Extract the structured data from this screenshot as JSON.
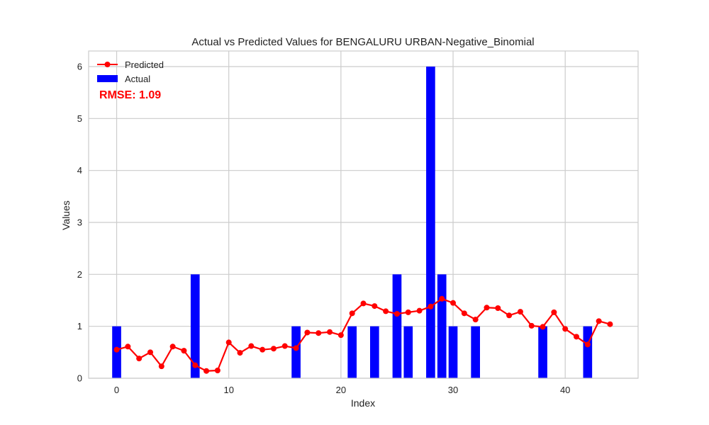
{
  "chart_data": {
    "type": "bar+line",
    "title": "Actual vs Predicted Values for BENGALURU URBAN-Negative_Binomial",
    "xlabel": "Index",
    "ylabel": "Values",
    "xlim": [
      -2.5,
      46.5
    ],
    "ylim": [
      0,
      6.3
    ],
    "xticks": [
      0,
      10,
      20,
      30,
      40
    ],
    "yticks": [
      0,
      1,
      2,
      3,
      4,
      5,
      6
    ],
    "grid": true,
    "legend_position": "top-left",
    "series": [
      {
        "name": "Predicted",
        "kind": "line",
        "color": "#ff0000",
        "x": [
          0,
          1,
          2,
          3,
          4,
          5,
          6,
          7,
          8,
          9,
          10,
          11,
          12,
          13,
          14,
          15,
          16,
          17,
          18,
          19,
          20,
          21,
          22,
          23,
          24,
          25,
          26,
          27,
          28,
          29,
          30,
          31,
          32,
          33,
          34,
          35,
          36,
          37,
          38,
          39,
          40,
          41,
          42,
          43,
          44
        ],
        "values": [
          0.55,
          0.61,
          0.38,
          0.5,
          0.23,
          0.61,
          0.53,
          0.25,
          0.14,
          0.15,
          0.69,
          0.49,
          0.62,
          0.55,
          0.57,
          0.62,
          0.58,
          0.88,
          0.87,
          0.89,
          0.83,
          1.25,
          1.44,
          1.39,
          1.29,
          1.24,
          1.27,
          1.3,
          1.38,
          1.53,
          1.45,
          1.25,
          1.13,
          1.36,
          1.35,
          1.21,
          1.28,
          1.01,
          0.99,
          1.27,
          0.95,
          0.8,
          0.65,
          1.1,
          1.04
        ]
      },
      {
        "name": "Actual",
        "kind": "bar",
        "color": "#0000ff",
        "x": [
          0,
          1,
          2,
          3,
          4,
          5,
          6,
          7,
          8,
          9,
          10,
          11,
          12,
          13,
          14,
          15,
          16,
          17,
          18,
          19,
          20,
          21,
          22,
          23,
          24,
          25,
          26,
          27,
          28,
          29,
          30,
          31,
          32,
          33,
          34,
          35,
          36,
          37,
          38,
          39,
          40,
          41,
          42,
          43,
          44
        ],
        "values": [
          1,
          0,
          0,
          0,
          0,
          0,
          0,
          2,
          0,
          0,
          0,
          0,
          0,
          0,
          0,
          0,
          1,
          0,
          0,
          0,
          0,
          1,
          0,
          1,
          0,
          2,
          1,
          0,
          6,
          2,
          1,
          0,
          1,
          0,
          0,
          0,
          0,
          0,
          1,
          0,
          0,
          0,
          1,
          0,
          0
        ]
      }
    ],
    "annotation": {
      "text": "RMSE: 1.09",
      "color": "#ff0000"
    }
  }
}
